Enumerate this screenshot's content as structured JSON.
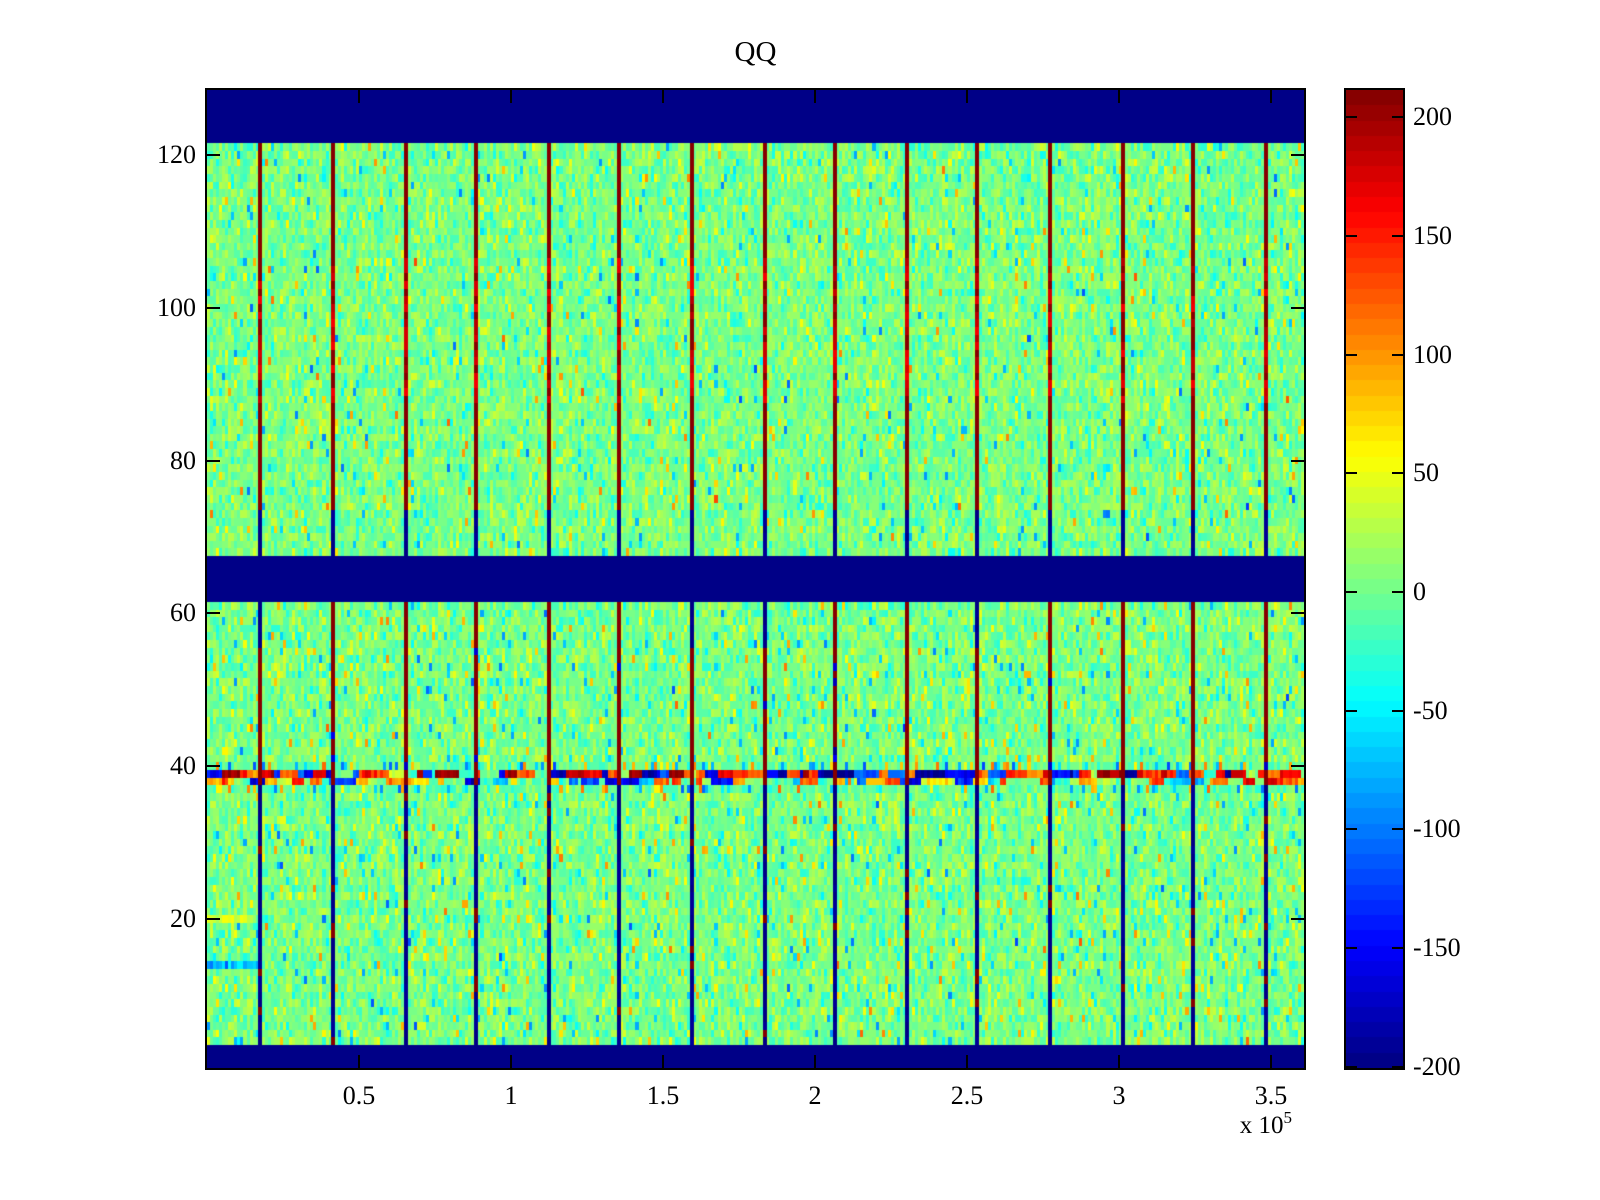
{
  "figure": {
    "background": "#ffffff"
  },
  "chart_data": {
    "type": "heatmap",
    "title": "QQ",
    "xlabel": "",
    "ylabel": "",
    "x_axis": {
      "range_units": [
        0,
        361000
      ],
      "tick_values": [
        50000,
        100000,
        150000,
        200000,
        250000,
        300000,
        350000
      ],
      "tick_labels": [
        "0.5",
        "1",
        "1.5",
        "2",
        "2.5",
        "3",
        "3.5"
      ],
      "scale_label": "x 10",
      "scale_exponent": "5"
    },
    "y_axis": {
      "range": [
        0.5,
        128.5
      ],
      "tick_values": [
        20,
        40,
        60,
        80,
        100,
        120
      ],
      "tick_labels": [
        "20",
        "40",
        "60",
        "80",
        "100",
        "120"
      ]
    },
    "colorbar": {
      "position": "right",
      "colormap": "jet",
      "levels": 64,
      "clim": [
        -200.5,
        211.5
      ],
      "tick_values": [
        200,
        150,
        100,
        50,
        0,
        -50,
        -100,
        -150,
        -200
      ],
      "tick_labels": [
        "200",
        "150",
        "100",
        "50",
        "0",
        "-50",
        "-100",
        "-150",
        "-200"
      ]
    },
    "grid": {
      "rows": 128,
      "cols": 361
    },
    "features": {
      "background_noise": {
        "mean": 3,
        "std": 18,
        "outlier_prob_upper": 0.065,
        "outlier_prob_lower": 0.09,
        "outlier_magnitude": [
          25,
          87
        ]
      },
      "blue_band_rows": [
        [
          1,
          3
        ],
        [
          62,
          67
        ],
        [
          122,
          128
        ]
      ],
      "band_value": -200,
      "noise_stripe_rows": [
        38,
        39
      ],
      "stripe_secondary_rows": [
        37,
        40
      ],
      "stripe_magnitude": [
        60,
        210
      ],
      "vertical_line_x_units": [
        17400,
        41000,
        64600,
        88200,
        111800,
        135400,
        159000,
        182600,
        206200,
        229800,
        253400,
        277000,
        300600,
        324200,
        347800
      ],
      "line_high_value": 208,
      "line_bright_value": 175,
      "line_bright_rows": [
        88,
        106
      ],
      "line_low_value": -188,
      "line_blue_rows_above_mid_band": [
        68,
        73
      ],
      "line_blue_rows_below_stripe": [
        4,
        37
      ],
      "left_edge_artifacts": [
        {
          "row": 20,
          "n_cols": 15,
          "value": 42
        },
        {
          "row": 14,
          "n_cols": 17,
          "value": -80
        }
      ]
    },
    "legend": null,
    "grid_lines": false,
    "seed": 1337
  },
  "colors": {
    "band_blue": "#000087",
    "line_maroon": "#880000",
    "axis": "#000000",
    "text": "#000000",
    "background": "#ffffff"
  }
}
